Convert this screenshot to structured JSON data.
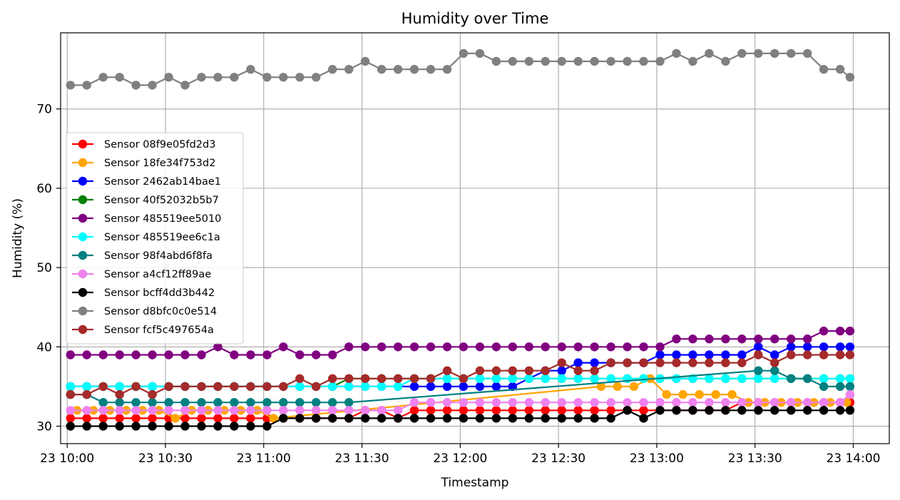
{
  "chart_data": {
    "type": "line",
    "title": "Humidity over Time",
    "xlabel": "Timestamp",
    "ylabel": "Humidity (%)",
    "x_type": "time",
    "x_ticks": [
      "10:00",
      "10:30",
      "11:00",
      "11:30",
      "12:00",
      "12:30",
      "13:00",
      "13:30",
      "14:00"
    ],
    "x_tick_labels": [
      "23 10:00",
      "23 10:30",
      "23 11:00",
      "23 11:30",
      "23 12:00",
      "23 12:30",
      "23 13:00",
      "23 13:30",
      "23 14:00"
    ],
    "xlim": [
      "09:58",
      "14:11"
    ],
    "ylim": [
      27.8,
      79.6
    ],
    "y_ticks": [
      30,
      40,
      50,
      60,
      70
    ],
    "grid": true,
    "legend_position": "center-left",
    "series": [
      {
        "name": "Sensor 08f9e05fd2d3",
        "color": "#ff0000",
        "marker": true,
        "x": [
          "10:01",
          "10:06",
          "10:11",
          "10:16",
          "10:21",
          "10:26",
          "10:31",
          "10:36",
          "10:41",
          "10:46",
          "10:51",
          "10:56",
          "11:01",
          "11:06",
          "11:11",
          "11:16",
          "11:21",
          "11:26",
          "11:31",
          "11:36",
          "11:41",
          "11:46",
          "11:51",
          "11:56",
          "12:01",
          "12:06",
          "12:11",
          "12:16",
          "12:21",
          "12:26",
          "12:31",
          "12:36",
          "12:41",
          "12:46",
          "12:51",
          "12:56",
          "13:01",
          "13:06",
          "13:11",
          "13:16",
          "13:21",
          "13:26",
          "13:31",
          "13:36",
          "13:41",
          "13:46",
          "13:51",
          "13:56",
          "13:59"
        ],
        "y": [
          31,
          31,
          31,
          31,
          31,
          31,
          31,
          31,
          31,
          31,
          31,
          31,
          31,
          31,
          31,
          31,
          31,
          31,
          32,
          32,
          31,
          32,
          32,
          32,
          32,
          32,
          32,
          32,
          32,
          32,
          32,
          32,
          32,
          32,
          32,
          32,
          32,
          32,
          32,
          32,
          32,
          33,
          33,
          33,
          33,
          33,
          33,
          33,
          33
        ]
      },
      {
        "name": "Sensor 18fe34f753d2",
        "color": "#ffa500",
        "marker": true,
        "x": [
          "10:03",
          "10:08",
          "10:13",
          "10:18",
          "10:23",
          "10:28",
          "10:33",
          "10:38",
          "10:43",
          "10:48",
          "10:53",
          "10:58",
          "11:03",
          "12:43",
          "12:48",
          "12:53",
          "12:58",
          "13:03",
          "13:08",
          "13:13",
          "13:18",
          "13:23",
          "13:28",
          "13:33",
          "13:38",
          "13:43",
          "13:48",
          "13:53",
          "13:58"
        ],
        "y": [
          32,
          32,
          32,
          32,
          32,
          32,
          31,
          32,
          32,
          32,
          32,
          32,
          31,
          35,
          35,
          35,
          36,
          34,
          34,
          34,
          34,
          34,
          33,
          33,
          33,
          33,
          33,
          33,
          33
        ]
      },
      {
        "name": "Sensor 2462ab14bae1",
        "color": "#0000ff",
        "marker": true,
        "x": [
          "10:01",
          "10:06",
          "10:11",
          "10:16",
          "10:21",
          "10:26",
          "10:31",
          "10:36",
          "10:41",
          "10:46",
          "10:51",
          "10:56",
          "11:01",
          "11:06",
          "11:11",
          "11:16",
          "11:21",
          "11:26",
          "11:31",
          "11:36",
          "11:41",
          "11:46",
          "11:51",
          "11:56",
          "12:01",
          "12:06",
          "12:11",
          "12:16",
          "12:21",
          "12:26",
          "12:31",
          "12:36",
          "12:41",
          "12:46",
          "12:51",
          "12:56",
          "13:01",
          "13:06",
          "13:11",
          "13:16",
          "13:21",
          "13:26",
          "13:31",
          "13:36",
          "13:41",
          "13:46",
          "13:51",
          "13:56",
          "13:59"
        ],
        "y": [
          35,
          35,
          35,
          35,
          35,
          35,
          35,
          35,
          35,
          35,
          35,
          35,
          35,
          35,
          35,
          35,
          35,
          35,
          35,
          35,
          35,
          35,
          35,
          35,
          35,
          35,
          35,
          35,
          36,
          37,
          37,
          38,
          38,
          38,
          38,
          38,
          39,
          39,
          39,
          39,
          39,
          39,
          40,
          39,
          40,
          40,
          40,
          40,
          40
        ]
      },
      {
        "name": "Sensor 40f52032b5b7",
        "color": "#008000",
        "marker": true,
        "x": [
          "10:01",
          "10:06",
          "10:11",
          "10:16",
          "10:21",
          "10:26",
          "10:31",
          "10:36",
          "10:41",
          "10:46",
          "10:51",
          "10:56",
          "11:01",
          "11:06",
          "11:11",
          "11:16",
          "11:21",
          "11:26",
          "11:31",
          "11:36",
          "11:41",
          "11:46",
          "11:51",
          "11:56",
          "12:01",
          "12:06",
          "12:11",
          "12:16",
          "12:21",
          "12:26",
          "12:31",
          "12:36",
          "12:41",
          "12:46",
          "12:51",
          "12:56",
          "13:01",
          "13:06",
          "13:11",
          "13:16",
          "13:21",
          "13:26",
          "13:31",
          "13:36",
          "13:41",
          "13:46",
          "13:51",
          "13:56",
          "13:59"
        ],
        "y": [
          35,
          35,
          35,
          35,
          35,
          35,
          35,
          35,
          35,
          35,
          35,
          35,
          35,
          35,
          35,
          35,
          35,
          36,
          36,
          36,
          36,
          36,
          36,
          36,
          36,
          36,
          36,
          36,
          36,
          36,
          36,
          36,
          36,
          36,
          36,
          36,
          36,
          36,
          36,
          36,
          36,
          36,
          36,
          36,
          36,
          36,
          36,
          36,
          36
        ]
      },
      {
        "name": "Sensor 485519ee5010",
        "color": "#800080",
        "marker": true,
        "x": [
          "10:01",
          "10:06",
          "10:11",
          "10:16",
          "10:21",
          "10:26",
          "10:31",
          "10:36",
          "10:41",
          "10:46",
          "10:51",
          "10:56",
          "11:01",
          "11:06",
          "11:11",
          "11:16",
          "11:21",
          "11:26",
          "11:31",
          "11:36",
          "11:41",
          "11:46",
          "11:51",
          "11:56",
          "12:01",
          "12:06",
          "12:11",
          "12:16",
          "12:21",
          "12:26",
          "12:31",
          "12:36",
          "12:41",
          "12:46",
          "12:51",
          "12:56",
          "13:01",
          "13:06",
          "13:11",
          "13:16",
          "13:21",
          "13:26",
          "13:31",
          "13:36",
          "13:41",
          "13:46",
          "13:51",
          "13:56",
          "13:59"
        ],
        "y": [
          39,
          39,
          39,
          39,
          39,
          39,
          39,
          39,
          39,
          40,
          39,
          39,
          39,
          40,
          39,
          39,
          39,
          40,
          40,
          40,
          40,
          40,
          40,
          40,
          40,
          40,
          40,
          40,
          40,
          40,
          40,
          40,
          40,
          40,
          40,
          40,
          40,
          41,
          41,
          41,
          41,
          41,
          41,
          41,
          41,
          41,
          42,
          42,
          42
        ]
      },
      {
        "name": "Sensor 485519ee6c1a",
        "color": "#00ffff",
        "marker": true,
        "x": [
          "10:01",
          "10:06",
          "10:11",
          "10:16",
          "10:21",
          "10:26",
          "10:31",
          "10:36",
          "10:41",
          "10:46",
          "10:51",
          "10:56",
          "11:01",
          "11:06",
          "11:11",
          "11:16",
          "11:21",
          "11:26",
          "11:31",
          "11:36",
          "11:41",
          "11:46",
          "11:51",
          "11:56",
          "12:01",
          "12:06",
          "12:11",
          "12:16",
          "12:21",
          "12:26",
          "12:31",
          "12:36",
          "12:41",
          "12:46",
          "12:51",
          "12:56",
          "13:01",
          "13:06",
          "13:11",
          "13:16",
          "13:21",
          "13:26",
          "13:31",
          "13:36",
          "13:41",
          "13:46",
          "13:51",
          "13:56",
          "13:59"
        ],
        "y": [
          35,
          35,
          35,
          35,
          35,
          35,
          35,
          35,
          35,
          35,
          35,
          35,
          35,
          35,
          35,
          35,
          35,
          35,
          35,
          35,
          35,
          36,
          36,
          36,
          36,
          36,
          36,
          36,
          36,
          36,
          36,
          36,
          36,
          36,
          36,
          36,
          36,
          36,
          36,
          36,
          36,
          36,
          36,
          36,
          36,
          36,
          36,
          36,
          36
        ]
      },
      {
        "name": "Sensor 98f4abd6f8fa",
        "color": "#008080",
        "marker": true,
        "x": [
          "10:01",
          "10:06",
          "10:11",
          "10:16",
          "10:21",
          "10:26",
          "10:31",
          "10:36",
          "10:41",
          "10:46",
          "10:51",
          "10:56",
          "11:01",
          "11:06",
          "11:11",
          "11:16",
          "11:21",
          "11:26",
          "13:31",
          "13:36",
          "13:41",
          "13:46",
          "13:51",
          "13:56",
          "13:59"
        ],
        "y": [
          34,
          34,
          33,
          33,
          33,
          33,
          33,
          33,
          33,
          33,
          33,
          33,
          33,
          33,
          33,
          33,
          33,
          33,
          37,
          37,
          36,
          36,
          35,
          35,
          35
        ]
      },
      {
        "name": "Sensor a4cf12ff89ae",
        "color": "#ee82ee",
        "marker": true,
        "x": [
          "10:01",
          "10:06",
          "10:11",
          "10:16",
          "10:21",
          "10:26",
          "10:31",
          "10:36",
          "10:41",
          "10:46",
          "10:51",
          "10:56",
          "11:01",
          "11:06",
          "11:11",
          "11:16",
          "11:21",
          "11:26",
          "11:31",
          "11:36",
          "11:41",
          "11:46",
          "11:51",
          "11:56",
          "12:01",
          "12:06",
          "12:11",
          "12:16",
          "12:21",
          "12:26",
          "12:31",
          "12:36",
          "12:41",
          "12:46",
          "12:51",
          "12:56",
          "13:01",
          "13:06",
          "13:11",
          "13:16",
          "13:21",
          "13:26",
          "13:31",
          "13:36",
          "13:41",
          "13:46",
          "13:51",
          "13:56",
          "13:59"
        ],
        "y": [
          32,
          32,
          32,
          32,
          32,
          32,
          32,
          32,
          32,
          32,
          32,
          32,
          32,
          32,
          32,
          32,
          32,
          32,
          32,
          32,
          32,
          33,
          33,
          33,
          33,
          33,
          33,
          33,
          33,
          33,
          33,
          33,
          33,
          33,
          33,
          33,
          33,
          33,
          33,
          33,
          33,
          33,
          33,
          33,
          33,
          33,
          33,
          33,
          34
        ]
      },
      {
        "name": "Sensor bcff4dd3b442",
        "color": "#000000",
        "marker": true,
        "x": [
          "10:01",
          "10:06",
          "10:11",
          "10:16",
          "10:21",
          "10:26",
          "10:31",
          "10:36",
          "10:41",
          "10:46",
          "10:51",
          "10:56",
          "11:01",
          "11:06",
          "11:11",
          "11:16",
          "11:21",
          "11:26",
          "11:31",
          "11:36",
          "11:41",
          "11:46",
          "11:51",
          "11:56",
          "12:01",
          "12:06",
          "12:11",
          "12:16",
          "12:21",
          "12:26",
          "12:31",
          "12:36",
          "12:41",
          "12:46",
          "12:51",
          "12:56",
          "13:01",
          "13:06",
          "13:11",
          "13:16",
          "13:21",
          "13:26",
          "13:31",
          "13:36",
          "13:41",
          "13:46",
          "13:51",
          "13:56",
          "13:59"
        ],
        "y": [
          30,
          30,
          30,
          30,
          30,
          30,
          30,
          30,
          30,
          30,
          30,
          30,
          30,
          31,
          31,
          31,
          31,
          31,
          31,
          31,
          31,
          31,
          31,
          31,
          31,
          31,
          31,
          31,
          31,
          31,
          31,
          31,
          31,
          31,
          32,
          31,
          32,
          32,
          32,
          32,
          32,
          32,
          32,
          32,
          32,
          32,
          32,
          32,
          32
        ]
      },
      {
        "name": "Sensor d8bfc0c0e514",
        "color": "#808080",
        "marker": true,
        "x": [
          "10:01",
          "10:06",
          "10:11",
          "10:16",
          "10:21",
          "10:26",
          "10:31",
          "10:36",
          "10:41",
          "10:46",
          "10:51",
          "10:56",
          "11:01",
          "11:06",
          "11:11",
          "11:16",
          "11:21",
          "11:26",
          "11:31",
          "11:36",
          "11:41",
          "11:46",
          "11:51",
          "11:56",
          "12:01",
          "12:06",
          "12:11",
          "12:16",
          "12:21",
          "12:26",
          "12:31",
          "12:36",
          "12:41",
          "12:46",
          "12:51",
          "12:56",
          "13:01",
          "13:06",
          "13:11",
          "13:16",
          "13:21",
          "13:26",
          "13:31",
          "13:36",
          "13:41",
          "13:46",
          "13:51",
          "13:56",
          "13:59"
        ],
        "y": [
          73,
          73,
          74,
          74,
          73,
          73,
          74,
          73,
          74,
          74,
          74,
          75,
          74,
          74,
          74,
          74,
          75,
          75,
          76,
          75,
          75,
          75,
          75,
          75,
          77,
          77,
          76,
          76,
          76,
          76,
          76,
          76,
          76,
          76,
          76,
          76,
          76,
          77,
          76,
          77,
          76,
          77,
          77,
          77,
          77,
          77,
          75,
          75,
          74
        ]
      },
      {
        "name": "Sensor fcf5c497654a",
        "color": "#a52a2a",
        "marker": true,
        "x": [
          "10:01",
          "10:06",
          "10:11",
          "10:16",
          "10:21",
          "10:26",
          "10:31",
          "10:36",
          "10:41",
          "10:46",
          "10:51",
          "10:56",
          "11:01",
          "11:06",
          "11:11",
          "11:16",
          "11:21",
          "11:26",
          "11:31",
          "11:36",
          "11:41",
          "11:46",
          "11:51",
          "11:56",
          "12:01",
          "12:06",
          "12:11",
          "12:16",
          "12:21",
          "12:26",
          "12:31",
          "12:36",
          "12:41",
          "12:46",
          "12:51",
          "12:56",
          "13:01",
          "13:06",
          "13:11",
          "13:16",
          "13:21",
          "13:26",
          "13:31",
          "13:36",
          "13:41",
          "13:46",
          "13:51",
          "13:56",
          "13:59"
        ],
        "y": [
          34,
          34,
          35,
          34,
          35,
          34,
          35,
          35,
          35,
          35,
          35,
          35,
          35,
          35,
          36,
          35,
          36,
          36,
          36,
          36,
          36,
          36,
          36,
          37,
          36,
          37,
          37,
          37,
          37,
          37,
          38,
          37,
          37,
          38,
          38,
          38,
          38,
          38,
          38,
          38,
          38,
          38,
          39,
          38,
          39,
          39,
          39,
          39,
          39
        ]
      }
    ]
  }
}
